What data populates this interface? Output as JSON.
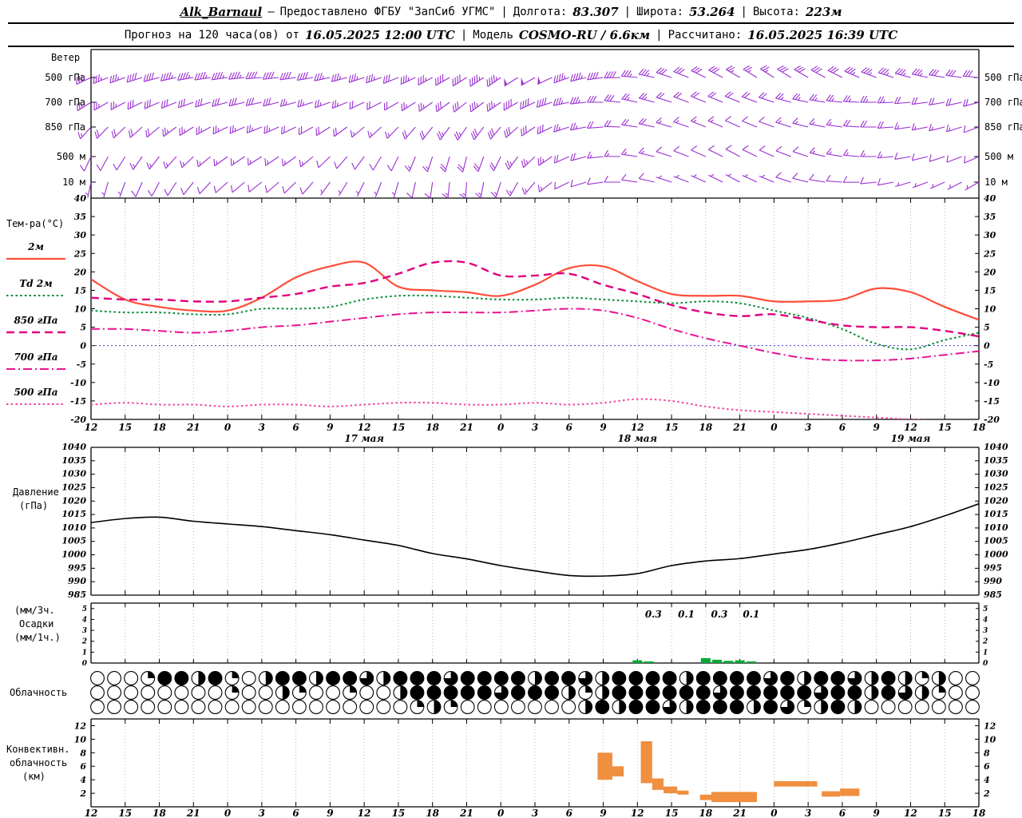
{
  "header": {
    "sep": "|",
    "dash": "—",
    "station": "Alk_Barnaul",
    "provider": "Предоставлено ФГБУ \"ЗапСиб УГМС\"",
    "lon_label": "Долгота:",
    "lon": "83.307",
    "lat_label": "Широта:",
    "lat": "53.264",
    "alt_label": "Высота:",
    "alt": "223м",
    "forecast_label": "Прогноз на 120 часа(ов) от",
    "run_time": "16.05.2025 12:00 UTC",
    "model_label": "Модель",
    "model": "COSMO-RU / 6.6км",
    "calc_label": "Рассчитано:",
    "calc_time": "16.05.2025 16:39 UTC"
  },
  "labels": {
    "wind": "Ветер",
    "temp": "Тем-ра(°C)",
    "pressure": [
      "Давление",
      "(гПа)"
    ],
    "precip": [
      "(мм/3ч.",
      "Осадки",
      "(мм/1ч.)"
    ],
    "cloud": "Облачность",
    "conv": [
      "Конвективн.",
      "облачность",
      "(км)"
    ]
  },
  "chart_data": [
    {
      "id": "wind",
      "type": "wind-barbs",
      "title": "Ветер",
      "color": "#9a2fd2",
      "x_hours": [
        0,
        3,
        6,
        9,
        12,
        15,
        18,
        21,
        24,
        27,
        30,
        33,
        36,
        39,
        42,
        45,
        48,
        51,
        54,
        57,
        60,
        63,
        66,
        69,
        72,
        75,
        78
      ],
      "levels": [
        {
          "label": "500 гПа",
          "dirs": [
            245,
            250,
            255,
            260,
            262,
            265,
            262,
            258,
            252,
            248,
            242,
            238,
            235,
            240,
            250,
            262,
            275,
            288,
            295,
            300,
            302,
            300,
            296,
            290,
            285,
            280,
            275
          ],
          "speeds_kt": [
            35,
            35,
            40,
            45,
            45,
            40,
            40,
            35,
            35,
            30,
            35,
            40,
            45,
            50,
            45,
            40,
            35,
            30,
            30,
            25,
            25,
            30,
            30,
            35,
            35,
            30,
            30
          ]
        },
        {
          "label": "700 гПа",
          "dirs": [
            238,
            242,
            246,
            250,
            255,
            258,
            255,
            250,
            245,
            240,
            235,
            232,
            235,
            245,
            258,
            270,
            282,
            288,
            292,
            292,
            288,
            282,
            276,
            270,
            265,
            260,
            255
          ],
          "speeds_kt": [
            25,
            25,
            30,
            30,
            30,
            30,
            25,
            25,
            20,
            20,
            25,
            30,
            35,
            40,
            35,
            30,
            25,
            20,
            20,
            20,
            20,
            25,
            25,
            25,
            20,
            20,
            20
          ]
        },
        {
          "label": "850 гПа",
          "dirs": [
            222,
            226,
            230,
            238,
            244,
            248,
            244,
            238,
            230,
            224,
            218,
            214,
            220,
            236,
            252,
            266,
            278,
            286,
            292,
            294,
            290,
            284,
            278,
            270,
            262,
            256,
            250
          ],
          "speeds_kt": [
            15,
            20,
            20,
            25,
            25,
            25,
            20,
            20,
            15,
            15,
            20,
            25,
            30,
            30,
            25,
            20,
            20,
            15,
            15,
            10,
            10,
            15,
            15,
            20,
            15,
            15,
            10
          ]
        },
        {
          "label": "500 м",
          "dirs": [
            205,
            212,
            218,
            226,
            234,
            238,
            234,
            226,
            216,
            206,
            198,
            194,
            206,
            226,
            246,
            264,
            278,
            288,
            294,
            298,
            294,
            288,
            280,
            270,
            260,
            252,
            246
          ],
          "speeds_kt": [
            10,
            10,
            15,
            15,
            15,
            15,
            15,
            10,
            10,
            10,
            15,
            20,
            20,
            25,
            20,
            15,
            15,
            10,
            10,
            10,
            10,
            10,
            15,
            15,
            10,
            10,
            10
          ]
        },
        {
          "label": "10 м",
          "dirs": [
            192,
            200,
            208,
            218,
            228,
            232,
            226,
            216,
            206,
            196,
            188,
            184,
            198,
            220,
            244,
            262,
            278,
            288,
            294,
            298,
            292,
            284,
            274,
            264,
            254,
            246,
            240
          ],
          "speeds_kt": [
            5,
            5,
            10,
            10,
            10,
            10,
            10,
            5,
            5,
            5,
            10,
            15,
            15,
            15,
            10,
            10,
            10,
            5,
            5,
            5,
            5,
            10,
            10,
            10,
            5,
            5,
            5
          ]
        }
      ]
    },
    {
      "id": "temperature",
      "type": "line",
      "ylabel": "Тем-ра(°C)",
      "ylim": [
        -20,
        40
      ],
      "yticks": [
        40,
        35,
        30,
        25,
        20,
        15,
        10,
        5,
        0,
        -5,
        -10,
        -15,
        -20
      ],
      "zero_line_color": "#3b3bd6",
      "x_hours": [
        0,
        3,
        6,
        9,
        12,
        15,
        18,
        21,
        24,
        27,
        30,
        33,
        36,
        39,
        42,
        45,
        48,
        51,
        54,
        57,
        60,
        63,
        66,
        69,
        72,
        75,
        78
      ],
      "x_tick_labels": [
        "12",
        "15",
        "18",
        "21",
        "0",
        "3",
        "6",
        "9",
        "12",
        "15",
        "18",
        "21",
        "0",
        "3",
        "6",
        "9",
        "12",
        "15",
        "18",
        "21",
        "0",
        "3",
        "6",
        "9",
        "12",
        "15",
        "18"
      ],
      "day_labels": [
        {
          "t": 24,
          "label": "17 мая"
        },
        {
          "t": 48,
          "label": "18 мая"
        },
        {
          "t": 72,
          "label": "19 мая"
        }
      ],
      "series": [
        {
          "name": "2м",
          "color": "#ff4d3a",
          "style": "solid",
          "values": [
            18,
            12.5,
            10.5,
            9.5,
            9.5,
            13,
            18.5,
            21.5,
            22.5,
            16,
            15,
            14.5,
            13.5,
            16.5,
            21,
            21.5,
            17.5,
            14,
            13.5,
            13.5,
            12,
            12,
            12.5,
            15.5,
            14.5,
            10.5,
            7
          ]
        },
        {
          "name": "Td 2м",
          "color": "#008833",
          "style": "dotted",
          "values": [
            9.5,
            9,
            9,
            8.5,
            8.5,
            10,
            10,
            10.5,
            12.5,
            13.5,
            13.5,
            13,
            12.5,
            12.5,
            13,
            12.5,
            12,
            11.5,
            12,
            11.5,
            9.5,
            7.5,
            4.5,
            0.5,
            -1,
            1.5,
            3.5
          ]
        },
        {
          "name": "850 гПа",
          "color": "#e0007f",
          "style": "dashed",
          "values": [
            13,
            12.5,
            12.5,
            12,
            12,
            13,
            14,
            16,
            17,
            19.5,
            22.5,
            22.5,
            19,
            19,
            19.5,
            16.5,
            14,
            11,
            9,
            8,
            8.5,
            7,
            5.5,
            5,
            5,
            4,
            2.5
          ]
        },
        {
          "name": "700 гПа",
          "color": "#ea1190",
          "style": "dashdot",
          "values": [
            4.5,
            4.5,
            4,
            3.5,
            4,
            5,
            5.5,
            6.5,
            7.5,
            8.5,
            9,
            9,
            9,
            9.5,
            10,
            9.5,
            7.5,
            4.5,
            2,
            0,
            -2,
            -3.5,
            -4,
            -4,
            -3.5,
            -2.5,
            -1.5
          ]
        },
        {
          "name": "500 гПа",
          "color": "#f2459e",
          "style": "dense-dot",
          "values": [
            -16,
            -15.5,
            -16,
            -16,
            -16.5,
            -16,
            -16,
            -16.5,
            -16,
            -15.5,
            -15.5,
            -16,
            -16,
            -15.5,
            -16,
            -15.5,
            -14.5,
            -15,
            -16.5,
            -17.5,
            -18,
            -18.5,
            -19,
            -19.5,
            -20,
            -20.5,
            -21
          ]
        }
      ]
    },
    {
      "id": "pressure",
      "type": "line",
      "ylabel": "Давление (гПа)",
      "ylim": [
        985,
        1040
      ],
      "yticks": [
        1040,
        1035,
        1030,
        1025,
        1020,
        1015,
        1010,
        1005,
        1000,
        995,
        990,
        985
      ],
      "x_hours": [
        0,
        3,
        6,
        9,
        12,
        15,
        18,
        21,
        24,
        27,
        30,
        33,
        36,
        39,
        42,
        45,
        48,
        51,
        54,
        57,
        60,
        63,
        66,
        69,
        72,
        75,
        78
      ],
      "series": [
        {
          "name": "Давление",
          "color": "#000000",
          "style": "solid",
          "values": [
            1012,
            1013.5,
            1014,
            1012.5,
            1011.5,
            1010.5,
            1009,
            1007.5,
            1005.5,
            1003.5,
            1000.5,
            998.5,
            996,
            994,
            992.3,
            992.1,
            993,
            996,
            997.7,
            998.6,
            1000.3,
            1002,
            1004.5,
            1007.5,
            1010.5,
            1014.5,
            1019
          ]
        }
      ]
    },
    {
      "id": "precipitation",
      "type": "bar",
      "ylabel": "Осадки (мм/3ч., мм/1ч.)",
      "ylim": [
        0,
        5.5
      ],
      "yticks": [
        5,
        4,
        3,
        2,
        1,
        0
      ],
      "color": "#00aa33",
      "bars": [
        {
          "t": 48,
          "h": 0.25
        },
        {
          "t": 49,
          "h": 0.15
        },
        {
          "t": 54,
          "h": 0.45
        },
        {
          "t": 55,
          "h": 0.3
        },
        {
          "t": 56,
          "h": 0.2
        },
        {
          "t": 57,
          "h": 0.25
        },
        {
          "t": 58,
          "h": 0.15
        }
      ],
      "value_labels": [
        {
          "t": 49.4,
          "text": "0.3"
        },
        {
          "t": 52.3,
          "text": "0.1"
        },
        {
          "t": 55.2,
          "text": "0.3"
        },
        {
          "t": 58,
          "text": "0.1"
        }
      ]
    },
    {
      "id": "cloudiness",
      "type": "symbols",
      "ylabel": "Облачность",
      "rows": [
        [
          0,
          0,
          0,
          0.25,
          1,
          1,
          0.5,
          1,
          0.25,
          0,
          0.5,
          1,
          1,
          0.5,
          1,
          1,
          0.75,
          0.5,
          1,
          1,
          1,
          0.75,
          1,
          1,
          1,
          1,
          0.5,
          1,
          1,
          0.75,
          0.5,
          1,
          1,
          1,
          1,
          0.5,
          1,
          1,
          1,
          1,
          0.75,
          1,
          0.5,
          1,
          1,
          0.75,
          0.5,
          1,
          0.5,
          0.25,
          0.5,
          0,
          0
        ],
        [
          0,
          0,
          0,
          0,
          0,
          0,
          0,
          0,
          0.25,
          0,
          0,
          0.5,
          0.25,
          0,
          0,
          0.25,
          0,
          0,
          0.5,
          1,
          1,
          1,
          1,
          1,
          0.75,
          1,
          1,
          1,
          0.5,
          0.25,
          0.5,
          1,
          1,
          1,
          1,
          1,
          1,
          0.75,
          1,
          1,
          1,
          1,
          1,
          0.75,
          1,
          1,
          0.5,
          1,
          0.75,
          0.5,
          0.25,
          0,
          0
        ],
        [
          0,
          0,
          0,
          0,
          0,
          0,
          0,
          0,
          0,
          0,
          0,
          0,
          0,
          0,
          0,
          0,
          0,
          0,
          0,
          0.25,
          0.5,
          0.25,
          0,
          0,
          0,
          0,
          0,
          0,
          0,
          0.5,
          1,
          0.5,
          1,
          1,
          0.75,
          0.5,
          1,
          1,
          1,
          0.5,
          1,
          0.75,
          0.25,
          0.5,
          1,
          0.5,
          0,
          0,
          0,
          0,
          0,
          0,
          0
        ]
      ]
    },
    {
      "id": "convective",
      "type": "range-bar",
      "ylabel": "Конвективн. облачность (км)",
      "ylim": [
        0,
        13
      ],
      "yticks": [
        12,
        10,
        8,
        6,
        4,
        2
      ],
      "color": "#ef8f3f",
      "x_tick_labels": [
        "12",
        "15",
        "18",
        "21",
        "0",
        "3",
        "6",
        "9",
        "12",
        "15",
        "18",
        "21",
        "0",
        "3",
        "6",
        "9",
        "12",
        "15",
        "18",
        "21",
        "0",
        "3",
        "6",
        "9",
        "12",
        "15",
        "18"
      ],
      "segments": [
        {
          "t0": 44.5,
          "t1": 45.8,
          "base": 4,
          "top": 8
        },
        {
          "t0": 45.8,
          "t1": 46.8,
          "base": 4.5,
          "top": 6
        },
        {
          "t0": 48.3,
          "t1": 49.3,
          "base": 3.5,
          "top": 9.7
        },
        {
          "t0": 49.3,
          "t1": 50.3,
          "base": 2.5,
          "top": 4.2
        },
        {
          "t0": 50.3,
          "t1": 51.5,
          "base": 2,
          "top": 3
        },
        {
          "t0": 51.5,
          "t1": 52.5,
          "base": 1.8,
          "top": 2.4
        },
        {
          "t0": 53.5,
          "t1": 54.5,
          "base": 1,
          "top": 1.8
        },
        {
          "t0": 54.5,
          "t1": 58.5,
          "base": 0.7,
          "top": 2.2
        },
        {
          "t0": 60,
          "t1": 63.8,
          "base": 3,
          "top": 3.8
        },
        {
          "t0": 64.2,
          "t1": 65.8,
          "base": 1.5,
          "top": 2.3
        },
        {
          "t0": 65.8,
          "t1": 67.5,
          "base": 1.6,
          "top": 2.7
        }
      ]
    }
  ]
}
